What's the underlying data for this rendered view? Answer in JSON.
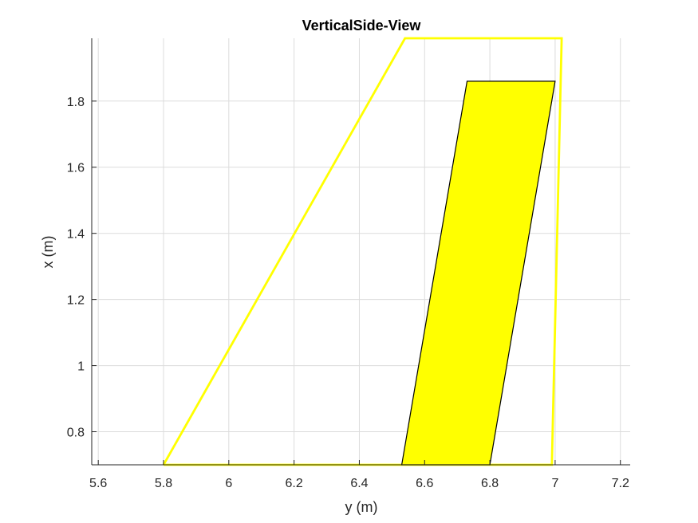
{
  "chart_data": {
    "type": "area",
    "title": "VerticalSide-View",
    "xlabel": "y (m)",
    "ylabel": "x (m)",
    "xlim": [
      5.58,
      7.23
    ],
    "ylim": [
      0.7,
      1.99
    ],
    "xticks": [
      5.6,
      5.8,
      6,
      6.2,
      6.4,
      6.6,
      6.8,
      7,
      7.2
    ],
    "yticks": [
      0.8,
      1,
      1.2,
      1.4,
      1.6,
      1.8
    ],
    "xtick_labels": [
      "5.6",
      "5.8",
      "6",
      "6.2",
      "6.4",
      "6.6",
      "6.8",
      "7",
      "7.2"
    ],
    "ytick_labels": [
      "0.8",
      "1",
      "1.2",
      "1.4",
      "1.6",
      "1.8"
    ],
    "grid": true,
    "shapes": [
      {
        "kind": "outline",
        "color": "#ffff00",
        "points": [
          [
            5.8,
            0.7
          ],
          [
            6.54,
            1.99
          ],
          [
            7.02,
            1.99
          ],
          [
            6.99,
            0.7
          ],
          [
            5.8,
            0.7
          ]
        ]
      },
      {
        "kind": "filled",
        "fill": "#ffff00",
        "stroke": "#000000",
        "points": [
          [
            6.53,
            0.7
          ],
          [
            6.8,
            0.7
          ],
          [
            7.0,
            1.86
          ],
          [
            6.73,
            1.86
          ],
          [
            6.53,
            0.7
          ]
        ]
      }
    ]
  }
}
